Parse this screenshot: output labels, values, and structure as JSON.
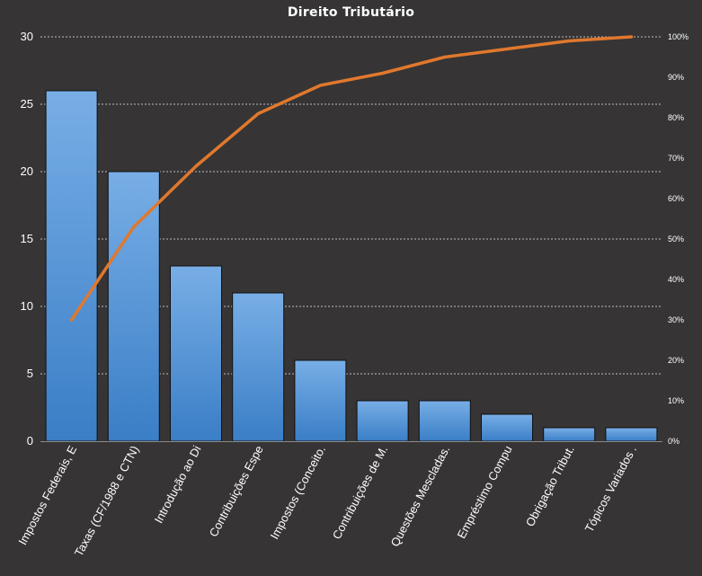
{
  "chart_data": {
    "type": "bar",
    "title": "Direito  Tributário",
    "categories": [
      "Impostos Federais, E",
      "Taxas (CF/1988 e CTN)",
      "Introdução ao Di",
      "Contribuições Espe",
      "Impostos (Conceito.",
      "Contribuições de M.",
      "Questões Mescladas.",
      "Empréstimo Compu",
      "Obrigação Tribut.",
      "Tópicos Variados ."
    ],
    "series": [
      {
        "type": "bar",
        "values": [
          26,
          20,
          13,
          11,
          6,
          3,
          3,
          2,
          1,
          1
        ]
      },
      {
        "type": "line",
        "axis": "right",
        "values": [
          0.3,
          0.53,
          0.68,
          0.81,
          0.88,
          0.91,
          0.95,
          0.97,
          0.99,
          1.0
        ]
      }
    ],
    "ylim": [
      0,
      30
    ],
    "yticks": [
      "0",
      "5",
      "10",
      "15",
      "20",
      "25",
      "30"
    ],
    "y2lim": [
      0,
      1
    ],
    "y2ticks": [
      "0%",
      "10%",
      "20%",
      "30%",
      "40%",
      "50%",
      "60%",
      "70%",
      "80%",
      "90%",
      "100%"
    ],
    "grid": true,
    "legend": "none",
    "colors": {
      "background": "#363434",
      "bar_top": "#78aee6",
      "bar_bottom": "#3a7ec6",
      "line": "#e0782d",
      "grid": "#bdbdbd",
      "text": "#ffffff"
    }
  }
}
